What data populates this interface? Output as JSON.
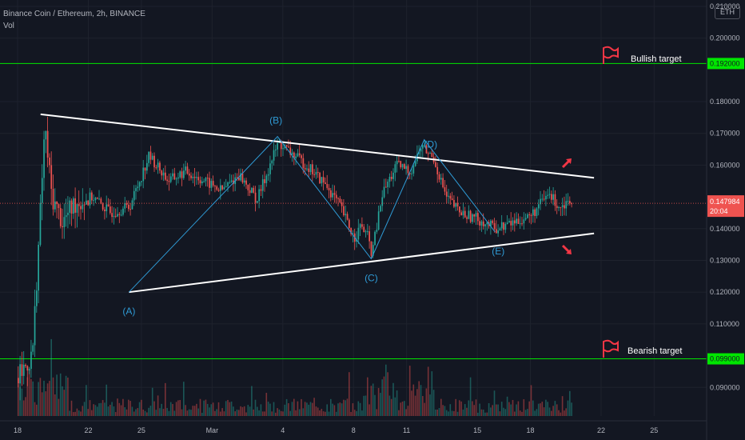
{
  "header": {
    "title": "Binance Coin / Ethereum, 2h, BINANCE",
    "indicator": "Vol"
  },
  "currency_unit": "ETH",
  "colors": {
    "background": "#131722",
    "up": "#26a69a",
    "down": "#ef5350",
    "target_line": "#00e600",
    "price_line": "#ef5350",
    "triangle": "#ffffff",
    "wave": "#2f9bd6",
    "arrow": "#f23645"
  },
  "chart_data": {
    "type": "candlestick",
    "symbol": "BNB/ETH",
    "interval": "2h",
    "exchange": "BINANCE",
    "x_ticks": [
      "18",
      "22",
      "25",
      "Mar",
      "4",
      "8",
      "11",
      "15",
      "18",
      "22",
      "25"
    ],
    "x_tick_days": [
      0,
      4,
      7,
      11,
      15,
      19,
      22,
      26,
      29,
      33,
      36
    ],
    "y_ticks": [
      "0.210000",
      "0.200000",
      "0.180000",
      "0.170000",
      "0.160000",
      "0.140000",
      "0.130000",
      "0.120000",
      "0.110000",
      "0.090000"
    ],
    "y_range": [
      0.081,
      0.212
    ],
    "current_price": {
      "label": "0.147984",
      "value": 0.147984,
      "countdown": "20:04"
    },
    "targets": [
      {
        "name": "Bullish target",
        "label": "0.192000",
        "value": 0.192
      },
      {
        "name": "Bearish target",
        "label": "0.099000",
        "value": 0.099
      }
    ],
    "triangle": {
      "upper": [
        [
          1.3,
          0.176
        ],
        [
          32.6,
          0.156
        ]
      ],
      "lower": [
        [
          6.3,
          0.12
        ],
        [
          32.6,
          0.1385
        ]
      ]
    },
    "waves": [
      {
        "label": "(A)",
        "day": 6.3,
        "price": 0.12
      },
      {
        "label": "(B)",
        "day": 14.7,
        "price": 0.169
      },
      {
        "label": "(C)",
        "day": 20.0,
        "price": 0.1305
      },
      {
        "label": "(D)",
        "day": 23.0,
        "price": 0.168
      },
      {
        "label": "(E)",
        "day": 27.0,
        "price": 0.139
      }
    ],
    "path": [
      [
        0,
        0.093
      ],
      [
        0.8,
        0.1
      ],
      [
        1.2,
        0.14
      ],
      [
        1.5,
        0.172
      ],
      [
        1.9,
        0.15
      ],
      [
        2.5,
        0.142
      ],
      [
        3.2,
        0.148
      ],
      [
        4.2,
        0.15
      ],
      [
        5.2,
        0.145
      ],
      [
        6.3,
        0.147
      ],
      [
        7.4,
        0.163
      ],
      [
        8.5,
        0.155
      ],
      [
        9.5,
        0.158
      ],
      [
        10.5,
        0.155
      ],
      [
        11.5,
        0.152
      ],
      [
        12.5,
        0.157
      ],
      [
        13.5,
        0.149
      ],
      [
        14.7,
        0.167
      ],
      [
        15.6,
        0.163
      ],
      [
        16.5,
        0.159
      ],
      [
        17.5,
        0.153
      ],
      [
        18.2,
        0.147
      ],
      [
        19.0,
        0.137
      ],
      [
        19.4,
        0.141
      ],
      [
        19.8,
        0.137
      ],
      [
        20.0,
        0.132
      ],
      [
        20.6,
        0.151
      ],
      [
        21.4,
        0.16
      ],
      [
        22.2,
        0.158
      ],
      [
        22.8,
        0.166
      ],
      [
        23.5,
        0.162
      ],
      [
        24.2,
        0.15
      ],
      [
        25.0,
        0.145
      ],
      [
        26.0,
        0.143
      ],
      [
        27.0,
        0.14
      ],
      [
        28.0,
        0.142
      ],
      [
        29.0,
        0.144
      ],
      [
        30.0,
        0.151
      ],
      [
        30.6,
        0.147
      ],
      [
        31.3,
        0.1495
      ]
    ]
  }
}
